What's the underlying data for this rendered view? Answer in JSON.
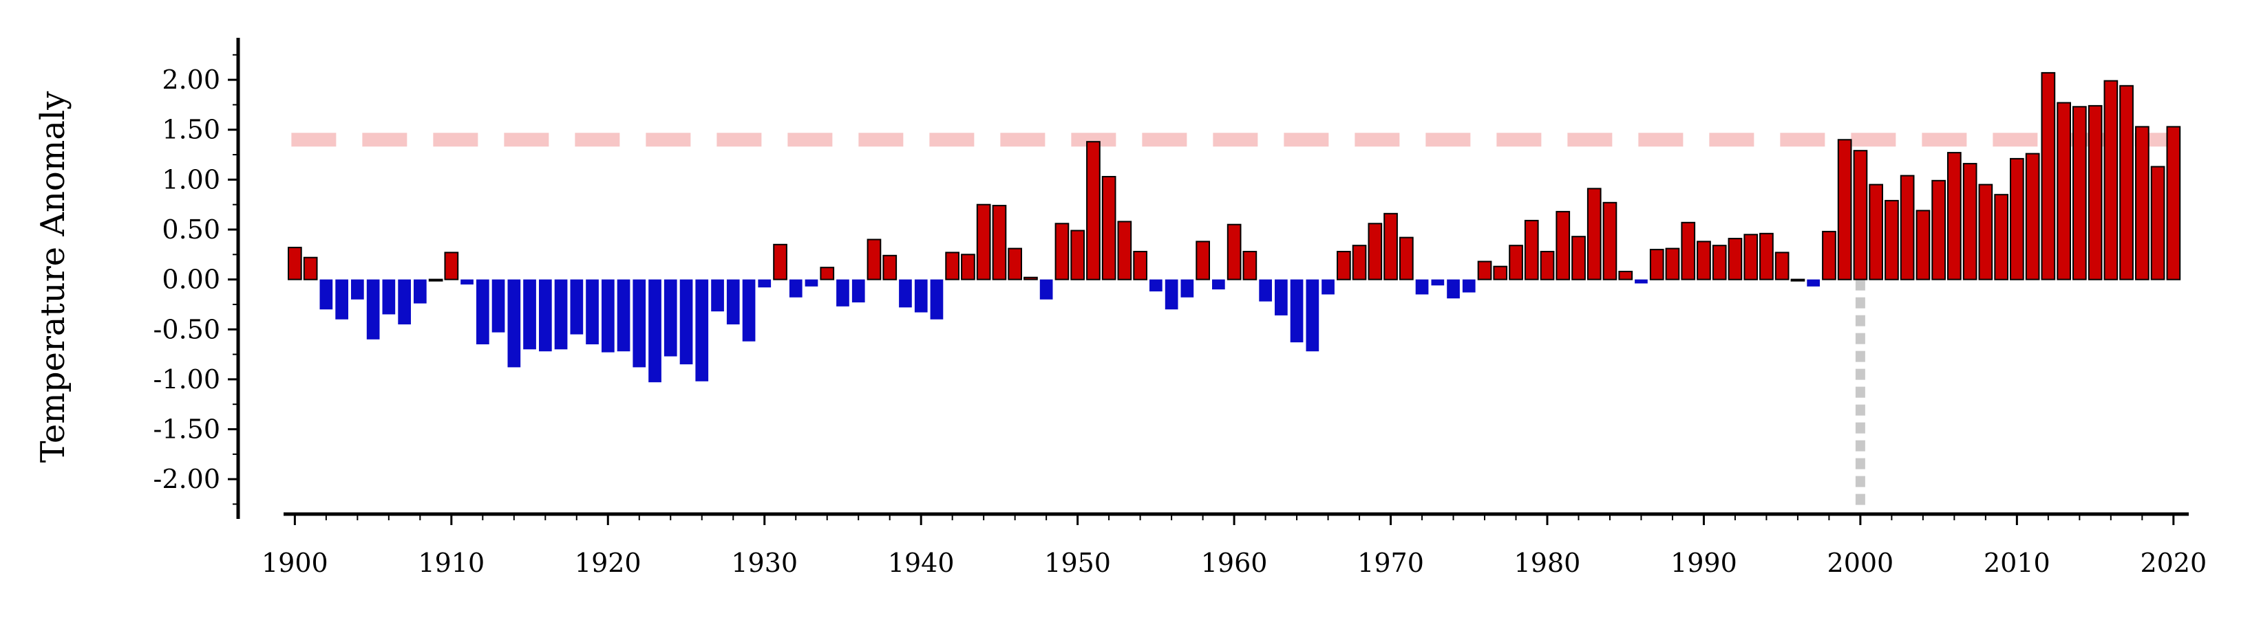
{
  "chart_data": {
    "type": "bar",
    "title": "",
    "xlabel": "",
    "ylabel": "Temperature Anomaly",
    "x": [
      1900,
      1901,
      1902,
      1903,
      1904,
      1905,
      1906,
      1907,
      1908,
      1909,
      1910,
      1911,
      1912,
      1913,
      1914,
      1915,
      1916,
      1917,
      1918,
      1919,
      1920,
      1921,
      1922,
      1923,
      1924,
      1925,
      1926,
      1927,
      1928,
      1929,
      1930,
      1931,
      1932,
      1933,
      1934,
      1935,
      1936,
      1937,
      1938,
      1939,
      1940,
      1941,
      1942,
      1943,
      1944,
      1945,
      1946,
      1947,
      1948,
      1949,
      1950,
      1951,
      1952,
      1953,
      1954,
      1955,
      1956,
      1957,
      1958,
      1959,
      1960,
      1961,
      1962,
      1963,
      1964,
      1965,
      1966,
      1967,
      1968,
      1969,
      1970,
      1971,
      1972,
      1973,
      1974,
      1975,
      1976,
      1977,
      1978,
      1979,
      1980,
      1981,
      1982,
      1983,
      1984,
      1985,
      1986,
      1987,
      1988,
      1989,
      1990,
      1991,
      1992,
      1993,
      1994,
      1995,
      1996,
      1997,
      1998,
      1999,
      2000,
      2001,
      2002,
      2003,
      2004,
      2005,
      2006,
      2007,
      2008,
      2009,
      2010,
      2011,
      2012,
      2013,
      2014,
      2015,
      2016,
      2017,
      2018,
      2019,
      2020
    ],
    "values": [
      0.32,
      0.22,
      -0.3,
      -0.4,
      -0.2,
      -0.6,
      -0.35,
      -0.45,
      -0.24,
      0.0,
      0.27,
      -0.05,
      -0.65,
      -0.53,
      -0.88,
      -0.7,
      -0.72,
      -0.7,
      -0.55,
      -0.65,
      -0.73,
      -0.72,
      -0.88,
      -1.03,
      -0.77,
      -0.85,
      -1.02,
      -0.32,
      -0.45,
      -0.62,
      -0.08,
      0.35,
      -0.18,
      -0.07,
      0.12,
      -0.27,
      -0.23,
      0.4,
      0.24,
      -0.28,
      -0.33,
      -0.4,
      0.27,
      0.25,
      0.75,
      0.74,
      0.31,
      0.02,
      -0.2,
      0.56,
      0.49,
      1.38,
      1.03,
      0.58,
      0.28,
      -0.12,
      -0.3,
      -0.18,
      0.38,
      -0.1,
      0.55,
      0.28,
      -0.22,
      -0.36,
      -0.63,
      -0.72,
      -0.15,
      0.28,
      0.34,
      0.56,
      0.66,
      0.42,
      -0.15,
      -0.06,
      -0.19,
      -0.13,
      0.18,
      0.13,
      0.34,
      0.59,
      0.28,
      0.68,
      0.43,
      0.91,
      0.77,
      0.08,
      -0.04,
      0.3,
      0.31,
      0.57,
      0.38,
      0.34,
      0.41,
      0.45,
      0.46,
      0.27,
      0.0,
      -0.07,
      0.48,
      1.4,
      1.29,
      0.95,
      0.79,
      1.04,
      0.69,
      0.99,
      1.27,
      1.16,
      0.95,
      0.85,
      1.21,
      1.26,
      2.07,
      1.77,
      1.73,
      1.74,
      1.99,
      1.94,
      1.53,
      1.13,
      1.53
    ],
    "ylim": [
      -2.35,
      2.4
    ],
    "xlim": [
      1899.5,
      2020.8
    ],
    "yticks": [
      -2.0,
      -1.5,
      -1.0,
      -0.5,
      0.0,
      0.5,
      1.0,
      1.5,
      2.0
    ],
    "ytick_labels": [
      "-2.00",
      "-1.50",
      "-1.00",
      "-0.50",
      "0.00",
      "0.50",
      "1.00",
      "1.50",
      "2.00"
    ],
    "xticks": [
      1900,
      1910,
      1920,
      1930,
      1940,
      1950,
      1960,
      1970,
      1980,
      1990,
      2000,
      2010,
      2020
    ],
    "xtick_labels": [
      "1900",
      "1910",
      "1920",
      "1930",
      "1940",
      "1950",
      "1960",
      "1970",
      "1980",
      "1990",
      "2000",
      "2010",
      "2020"
    ],
    "reference_lines": [
      {
        "orientation": "horizontal",
        "value": 1.4,
        "style": "dashed",
        "color": "#f7c6c6"
      },
      {
        "orientation": "vertical",
        "value": 2000,
        "style": "dotted",
        "color": "#c8c8c8"
      }
    ],
    "colors": {
      "positive": "#cc0000",
      "negative": "#0a0ac8",
      "positive_edge": "#000000"
    },
    "grid": false,
    "legend": "none"
  }
}
